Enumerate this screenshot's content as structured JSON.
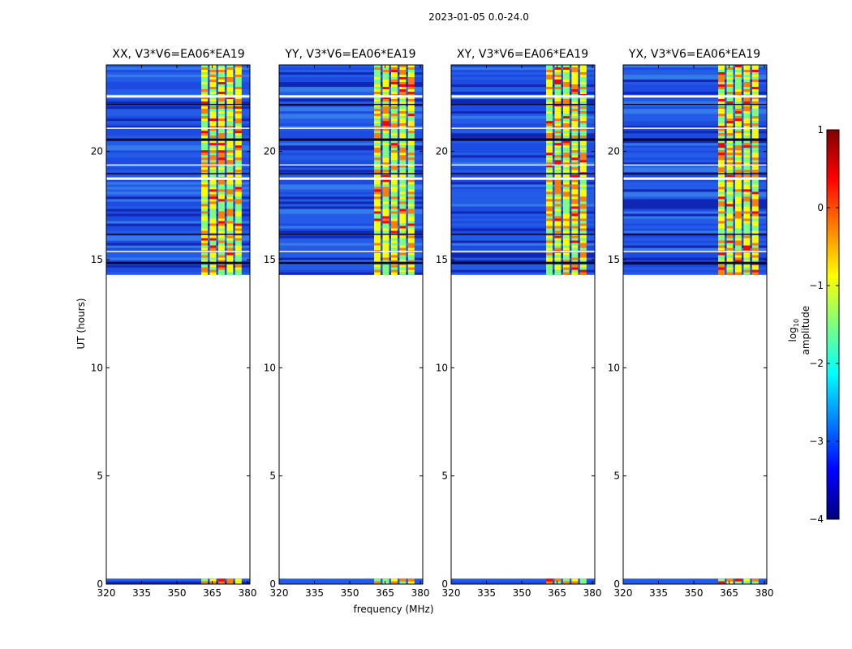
{
  "figure_title": "2023-01-05 0.0-24.0",
  "chart_data": [
    {
      "type": "heatmap",
      "title": "XX, V3*V6=EA06*EA19",
      "xlabel": "frequency (MHz)",
      "ylabel": "UT (hours)",
      "xlim": [
        320,
        381
      ],
      "ylim": [
        0,
        24
      ],
      "xticks": [
        320,
        335,
        350,
        365,
        380
      ],
      "yticks": [
        0,
        5,
        10,
        15,
        20
      ],
      "data_coverage_ut": [
        [
          0.0,
          0.25
        ],
        [
          14.3,
          24.0
        ]
      ],
      "bright_band_mhz": [
        360,
        378
      ]
    },
    {
      "type": "heatmap",
      "title": "YY, V3*V6=EA06*EA19",
      "xlabel": "frequency (MHz)",
      "ylabel": "UT (hours)",
      "xlim": [
        320,
        381
      ],
      "ylim": [
        0,
        24
      ],
      "xticks": [
        320,
        335,
        350,
        365,
        380
      ],
      "yticks": [
        0,
        5,
        10,
        15,
        20
      ],
      "data_coverage_ut": [
        [
          0.0,
          0.25
        ],
        [
          14.3,
          24.0
        ]
      ],
      "bright_band_mhz": [
        360,
        378
      ]
    },
    {
      "type": "heatmap",
      "title": "XY, V3*V6=EA06*EA19",
      "xlabel": "frequency (MHz)",
      "ylabel": "UT (hours)",
      "xlim": [
        320,
        381
      ],
      "ylim": [
        0,
        24
      ],
      "xticks": [
        320,
        335,
        350,
        365,
        380
      ],
      "yticks": [
        0,
        5,
        10,
        15,
        20
      ],
      "data_coverage_ut": [
        [
          0.0,
          0.25
        ],
        [
          14.3,
          24.0
        ]
      ],
      "bright_band_mhz": [
        360,
        378
      ]
    },
    {
      "type": "heatmap",
      "title": "YX, V3*V6=EA06*EA19",
      "xlabel": "frequency (MHz)",
      "ylabel": "UT (hours)",
      "xlim": [
        320,
        381
      ],
      "ylim": [
        0,
        24
      ],
      "xticks": [
        320,
        335,
        350,
        365,
        380
      ],
      "yticks": [
        0,
        5,
        10,
        15,
        20
      ],
      "data_coverage_ut": [
        [
          0.0,
          0.25
        ],
        [
          14.3,
          24.0
        ]
      ],
      "bright_band_mhz": [
        360,
        378
      ]
    }
  ],
  "colorbar": {
    "label": "log10 amplitude",
    "label_main": "log",
    "label_sub": "10",
    "label_rest": " amplitude",
    "range": [
      -4,
      1
    ],
    "ticks": [
      1,
      0,
      -1,
      -2,
      -3,
      -4
    ],
    "tick_labels": [
      "1",
      "0",
      "−1",
      "−2",
      "−3",
      "−4"
    ],
    "colors": [
      "#00007f",
      "#0000ff",
      "#007fff",
      "#00ffff",
      "#7fff7f",
      "#ffff00",
      "#ff7f00",
      "#ff0000",
      "#7f0000"
    ]
  },
  "xlabel_shared": "frequency (MHz)",
  "ylabel_shared": "UT (hours)"
}
